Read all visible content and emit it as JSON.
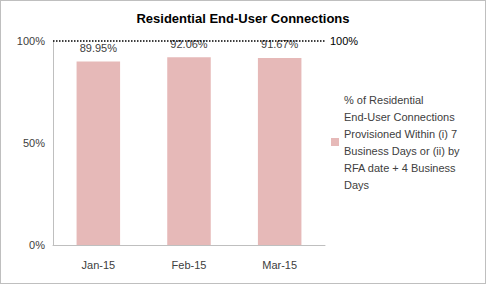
{
  "chart_data": {
    "type": "bar",
    "title": "Residential End-User Connections",
    "categories": [
      "Jan-15",
      "Feb-15",
      "Mar-15"
    ],
    "series": [
      {
        "name": "% of Residential End-User Connections Provisioned Within (i) 7 Business Days or (ii) by RFA date + 4 Business Days",
        "color": "#e6b9b8",
        "values": [
          89.95,
          92.06,
          91.67
        ],
        "value_labels": [
          "89.95%",
          "92.06%",
          "91.67%"
        ]
      }
    ],
    "ylim": [
      0,
      100
    ],
    "yticks": [
      {
        "value": 0,
        "label": "0%"
      },
      {
        "value": 50,
        "label": "50%"
      },
      {
        "value": 100,
        "label": "100%"
      }
    ],
    "grid": false,
    "legend": "right",
    "data_labels": true,
    "annotations": [
      {
        "y": 100,
        "text": "100%",
        "line_style": "dotted"
      }
    ]
  }
}
